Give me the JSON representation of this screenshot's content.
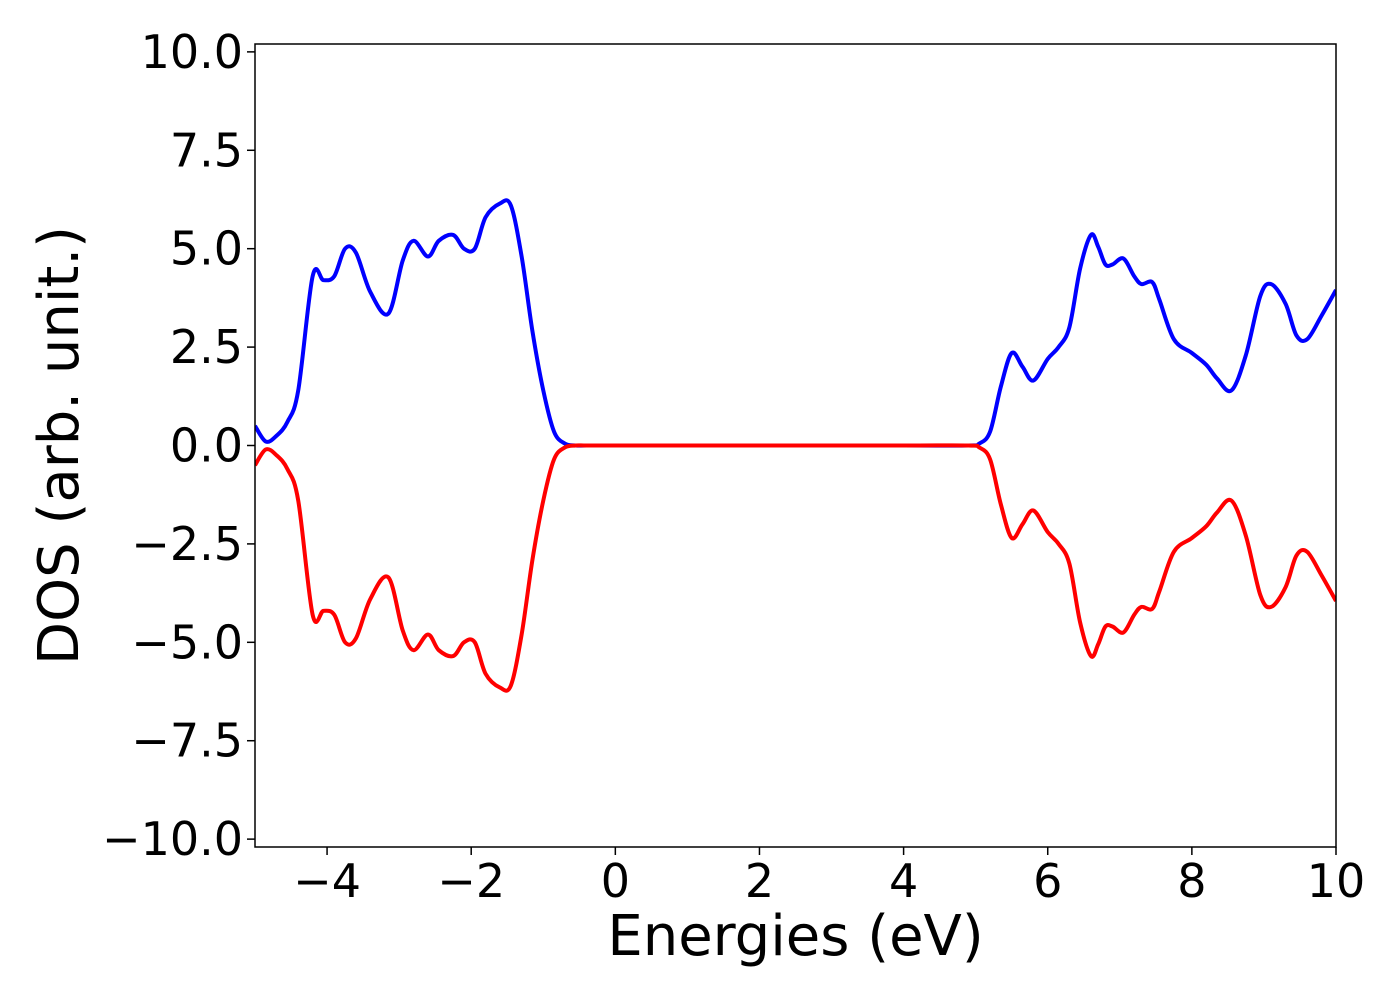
{
  "chart_data": {
    "type": "line",
    "title": "",
    "xlabel": "Energies (eV)",
    "ylabel": "DOS (arb. unit.)",
    "xlim": [
      -5,
      10
    ],
    "ylim": [
      -10.2,
      10.2
    ],
    "grid": false,
    "legend": "none",
    "x_ticks": [
      -4,
      -2,
      0,
      2,
      4,
      6,
      8,
      10
    ],
    "x_tick_labels": [
      "−4",
      "−2",
      "0",
      "2",
      "4",
      "6",
      "8",
      "10"
    ],
    "y_ticks": [
      10,
      7.5,
      5,
      2.5,
      0,
      -2.5,
      -5,
      -7.5,
      -10
    ],
    "y_tick_labels": [
      "10.0",
      "7.5",
      "5.0",
      "2.5",
      "0.0",
      "−2.5",
      "−5.0",
      "−7.5",
      "−10.0"
    ],
    "series": [
      {
        "color": "#0000ff",
        "x": [
          -5.0,
          -4.85,
          -4.7,
          -4.55,
          -4.4,
          -4.2,
          -4.05,
          -3.9,
          -3.75,
          -3.6,
          -3.4,
          -3.15,
          -2.95,
          -2.8,
          -2.6,
          -2.45,
          -2.25,
          -2.1,
          -1.95,
          -1.8,
          -1.6,
          -1.45,
          -1.3,
          -1.15,
          -1.0,
          -0.85,
          -0.7,
          -0.55,
          -0.4,
          0.0,
          2.0,
          4.0,
          4.9,
          5.05,
          5.2,
          5.35,
          5.5,
          5.65,
          5.8,
          6.0,
          6.15,
          6.3,
          6.45,
          6.6,
          6.7,
          6.8,
          6.9,
          7.05,
          7.2,
          7.3,
          7.45,
          7.55,
          7.75,
          8.0,
          8.2,
          8.35,
          8.55,
          8.75,
          8.95,
          9.1,
          9.3,
          9.45,
          9.6,
          9.8,
          10.0
        ],
        "y": [
          0.5,
          0.1,
          0.25,
          0.6,
          1.4,
          4.3,
          4.2,
          4.3,
          5.0,
          4.9,
          3.9,
          3.35,
          4.7,
          5.2,
          4.8,
          5.2,
          5.35,
          5.0,
          5.0,
          5.8,
          6.15,
          6.1,
          4.8,
          2.9,
          1.4,
          0.35,
          0.05,
          0.0,
          0.0,
          0.0,
          0.0,
          0.0,
          0.0,
          0.05,
          0.35,
          1.5,
          2.35,
          2.0,
          1.65,
          2.2,
          2.5,
          3.0,
          4.5,
          5.35,
          5.05,
          4.6,
          4.6,
          4.75,
          4.3,
          4.1,
          4.15,
          3.7,
          2.7,
          2.35,
          2.05,
          1.7,
          1.4,
          2.3,
          3.8,
          4.1,
          3.6,
          2.8,
          2.7,
          3.3,
          3.95
        ]
      },
      {
        "color": "#ff0000",
        "x": [
          -5.0,
          -4.85,
          -4.7,
          -4.55,
          -4.4,
          -4.2,
          -4.05,
          -3.9,
          -3.75,
          -3.6,
          -3.4,
          -3.15,
          -2.95,
          -2.8,
          -2.6,
          -2.45,
          -2.25,
          -2.1,
          -1.95,
          -1.8,
          -1.6,
          -1.45,
          -1.3,
          -1.15,
          -1.0,
          -0.85,
          -0.7,
          -0.55,
          -0.4,
          0.0,
          2.0,
          4.0,
          4.9,
          5.05,
          5.2,
          5.35,
          5.5,
          5.65,
          5.8,
          6.0,
          6.15,
          6.3,
          6.45,
          6.6,
          6.7,
          6.8,
          6.9,
          7.05,
          7.2,
          7.3,
          7.45,
          7.55,
          7.75,
          8.0,
          8.2,
          8.35,
          8.55,
          8.75,
          8.95,
          9.1,
          9.3,
          9.45,
          9.6,
          9.8,
          10.0
        ],
        "y": [
          -0.5,
          -0.1,
          -0.25,
          -0.6,
          -1.4,
          -4.3,
          -4.2,
          -4.3,
          -5.0,
          -4.9,
          -3.9,
          -3.35,
          -4.7,
          -5.2,
          -4.8,
          -5.2,
          -5.35,
          -5.0,
          -5.0,
          -5.8,
          -6.15,
          -6.1,
          -4.8,
          -2.9,
          -1.4,
          -0.35,
          -0.05,
          0.0,
          0.0,
          0.0,
          0.0,
          0.0,
          0.0,
          -0.05,
          -0.35,
          -1.5,
          -2.35,
          -2.0,
          -1.65,
          -2.2,
          -2.5,
          -3.0,
          -4.5,
          -5.35,
          -5.05,
          -4.6,
          -4.6,
          -4.75,
          -4.3,
          -4.1,
          -4.15,
          -3.7,
          -2.7,
          -2.35,
          -2.05,
          -1.7,
          -1.4,
          -2.3,
          -3.8,
          -4.1,
          -3.6,
          -2.8,
          -2.7,
          -3.3,
          -3.95
        ]
      }
    ]
  }
}
